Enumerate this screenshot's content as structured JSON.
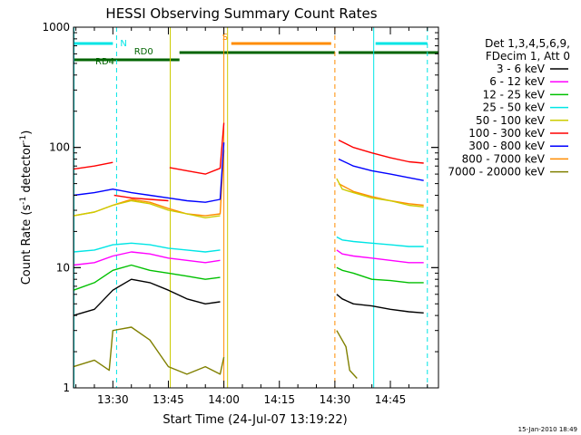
{
  "chart_data": {
    "type": "line",
    "title": "HESSI Observing Summary Count Rates",
    "xlabel": "Start Time (24-Jul-07 13:19:22)",
    "ylabel": "Count Rate (s⁻¹ detector⁻¹)",
    "ylabel_main": "Count Rate (s",
    "ylabel_mid": " detector",
    "ylabel_end": ")",
    "ylabel_exp": "-1",
    "y_scale": "log",
    "xlim": [
      "13:19:22",
      "14:58:00"
    ],
    "ylim": [
      1,
      1000
    ],
    "x_ticks": [
      "13:30",
      "13:45",
      "14:00",
      "14:15",
      "14:30",
      "14:45"
    ],
    "y_ticks": [
      "1",
      "10",
      "100",
      "1000"
    ],
    "legend": {
      "placement": "right",
      "header": [
        "Det 1,3,4,5,6,9,",
        "FDecim 1, Att 0"
      ]
    },
    "series": [
      {
        "name": "3 - 6 keV",
        "color": "#000000",
        "segments": [
          {
            "x": [
              "13:19:22",
              "13:25",
              "13:30",
              "13:35",
              "13:40",
              "13:45",
              "13:50",
              "13:55",
              "13:59"
            ],
            "y": [
              4,
              4.5,
              6.5,
              8,
              7.5,
              6.5,
              5.5,
              5,
              5.2
            ]
          },
          {
            "x": [
              "14:30:30",
              "14:32",
              "14:35",
              "14:40",
              "14:45",
              "14:50",
              "14:54"
            ],
            "y": [
              6,
              5.5,
              5,
              4.8,
              4.5,
              4.3,
              4.2
            ]
          }
        ]
      },
      {
        "name": "6 - 12 keV",
        "color": "#ff00ff",
        "segments": [
          {
            "x": [
              "13:19:22",
              "13:25",
              "13:30",
              "13:35",
              "13:40",
              "13:45",
              "13:50",
              "13:55",
              "13:59"
            ],
            "y": [
              10.5,
              11,
              12.5,
              13.5,
              13,
              12,
              11.5,
              11,
              11.5
            ]
          },
          {
            "x": [
              "14:30:30",
              "14:32",
              "14:35",
              "14:40",
              "14:45",
              "14:50",
              "14:54"
            ],
            "y": [
              14,
              13,
              12.5,
              12,
              11.5,
              11,
              11
            ]
          }
        ]
      },
      {
        "name": "12 - 25 keV",
        "color": "#00c000",
        "segments": [
          {
            "x": [
              "13:19:22",
              "13:25",
              "13:30",
              "13:35",
              "13:40",
              "13:45",
              "13:50",
              "13:55",
              "13:59"
            ],
            "y": [
              6.5,
              7.5,
              9.5,
              10.5,
              9.5,
              9,
              8.5,
              8,
              8.3
            ]
          },
          {
            "x": [
              "14:30:30",
              "14:32",
              "14:35",
              "14:40",
              "14:45",
              "14:50",
              "14:54"
            ],
            "y": [
              10,
              9.5,
              9,
              8,
              7.8,
              7.5,
              7.5
            ]
          }
        ]
      },
      {
        "name": "25 - 50 keV",
        "color": "#00e5e5",
        "segments": [
          {
            "x": [
              "13:19:22",
              "13:25",
              "13:30",
              "13:35",
              "13:40",
              "13:45",
              "13:50",
              "13:55",
              "13:59"
            ],
            "y": [
              13.5,
              14,
              15.5,
              16,
              15.5,
              14.5,
              14,
              13.5,
              14
            ]
          },
          {
            "x": [
              "14:30:30",
              "14:32",
              "14:35",
              "14:40",
              "14:45",
              "14:50",
              "14:54"
            ],
            "y": [
              18,
              17,
              16.5,
              16,
              15.5,
              15,
              15
            ]
          }
        ]
      },
      {
        "name": "50 - 100 keV",
        "color": "#cccc00",
        "segments": [
          {
            "x": [
              "13:19:22",
              "13:25",
              "13:30",
              "13:35",
              "13:40",
              "13:45",
              "13:50",
              "13:55",
              "13:59"
            ],
            "y": [
              27,
              29,
              33,
              36,
              34,
              30,
              28,
              26,
              27
            ]
          },
          {
            "x": [
              "14:30:30",
              "14:32",
              "14:35",
              "14:40",
              "14:45",
              "14:50",
              "14:54"
            ],
            "y": [
              55,
              45,
              42,
              38,
              36,
              33,
              32
            ]
          }
        ]
      },
      {
        "name": "100 - 300 keV",
        "color": "#ff0000",
        "segments": [
          {
            "x": [
              "13:19:22",
              "13:25",
              "13:30"
            ],
            "y": [
              66,
              70,
              75
            ]
          },
          {
            "x": [
              "13:30:20",
              "13:35",
              "13:40",
              "13:45"
            ],
            "y": [
              40,
              38,
              37,
              36
            ]
          },
          {
            "x": [
              "13:45:20",
              "13:50",
              "13:55",
              "13:59",
              "14:00"
            ],
            "y": [
              68,
              64,
              60,
              67,
              160
            ]
          },
          {
            "x": [
              "14:31",
              "14:35",
              "14:40",
              "14:45",
              "14:50",
              "14:54"
            ],
            "y": [
              115,
              100,
              90,
              82,
              76,
              74
            ]
          }
        ]
      },
      {
        "name": "300 - 800 keV",
        "color": "#0000ff",
        "segments": [
          {
            "x": [
              "13:19:22",
              "13:25",
              "13:30",
              "13:35",
              "13:40",
              "13:45",
              "13:50",
              "13:55",
              "13:59",
              "14:00"
            ],
            "y": [
              40,
              42,
              45,
              42,
              40,
              38,
              36,
              35,
              37,
              110
            ]
          },
          {
            "x": [
              "14:31",
              "14:35",
              "14:40",
              "14:45",
              "14:50",
              "14:54"
            ],
            "y": [
              80,
              70,
              64,
              60,
              56,
              53
            ]
          }
        ]
      },
      {
        "name": "800 - 7000 keV",
        "color": "#ff8c00",
        "segments": [
          {
            "x": [
              "13:19:22",
              "13:25",
              "13:30",
              "13:35",
              "13:40",
              "13:45",
              "13:50",
              "13:55",
              "13:59",
              "14:00"
            ],
            "y": [
              27,
              29,
              33,
              37,
              35,
              31,
              28,
              27,
              28,
              95
            ]
          },
          {
            "x": [
              "14:31",
              "14:35",
              "14:40",
              "14:45",
              "14:50",
              "14:54"
            ],
            "y": [
              50,
              43,
              39,
              36,
              34,
              33
            ]
          }
        ]
      },
      {
        "name": "7000 - 20000 keV",
        "color": "#808000",
        "segments": [
          {
            "x": [
              "13:19:22",
              "13:25",
              "13:29",
              "13:30",
              "13:35",
              "13:40",
              "13:45",
              "13:50",
              "13:55",
              "13:59",
              "14:00"
            ],
            "y": [
              1.5,
              1.7,
              1.4,
              3,
              3.2,
              2.5,
              1.5,
              1.3,
              1.5,
              1.3,
              1.8
            ]
          },
          {
            "x": [
              "14:30:30",
              "14:33",
              "14:34",
              "14:36"
            ],
            "y": [
              3,
              2.2,
              1.4,
              1.2
            ]
          }
        ]
      }
    ],
    "flags": [
      {
        "label": "RD4",
        "color": "#006400",
        "row": "low",
        "x_start": "13:19:22",
        "x_end": "13:48"
      },
      {
        "label": "RD0",
        "color": "#006400",
        "row": "high",
        "x_start": "13:48",
        "x_end": "14:30"
      },
      {
        "label": "",
        "color": "#006400",
        "row": "high",
        "x_start": "14:31",
        "x_end": "14:58"
      },
      {
        "label": "N",
        "color": "#00e5e5",
        "row": "top",
        "x_start": "13:19:22",
        "x_end": "13:30"
      },
      {
        "label": "",
        "color": "#00e5e5",
        "row": "top",
        "x_start": "14:41",
        "x_end": "14:55"
      },
      {
        "label": "S",
        "color": "#ff8c00",
        "row": "top",
        "x_start": "14:02",
        "x_end": "14:29"
      }
    ],
    "vlines": [
      {
        "x": "13:19:30",
        "color": "#00e5e5",
        "style": "solid"
      },
      {
        "x": "13:31",
        "color": "#00e5e5",
        "style": "dashed"
      },
      {
        "x": "13:45:30",
        "color": "#cccc00",
        "style": "solid"
      },
      {
        "x": "14:00",
        "color": "#ff8c00",
        "style": "solid"
      },
      {
        "x": "14:01",
        "color": "#cccc00",
        "style": "solid"
      },
      {
        "x": "14:30",
        "color": "#ff8c00",
        "style": "dashed"
      },
      {
        "x": "14:40:30",
        "color": "#00e5e5",
        "style": "solid"
      },
      {
        "x": "14:55",
        "color": "#00e5e5",
        "style": "dashed"
      }
    ],
    "footer_date": "15-Jan-2010 18:49"
  }
}
